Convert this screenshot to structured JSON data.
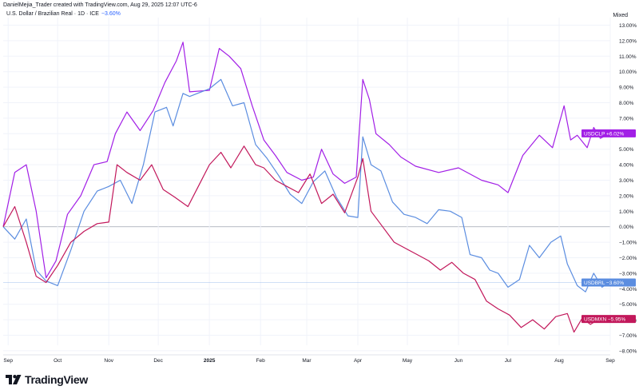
{
  "header": {
    "attribution": "DanielMejia_Trader created with TradingView.com, Aug 29, 2025 12:07 UTC-6",
    "symbol_title": "U.S. Dollar / Brazilian Real · 1D · ICE",
    "symbol_change": "−3.60%",
    "scale_mode": "Mixed"
  },
  "brand": {
    "name": "TradingView",
    "logo_icon": "tradingview-logo-icon"
  },
  "colors": {
    "usdclp": "#a21fe6",
    "usdbrl": "#5b8de0",
    "usdmxn": "#c2185b",
    "zero_line": "#b2b5be",
    "grid": "#f0f3fa"
  },
  "chart_data": {
    "type": "line",
    "title": "U.S. Dollar / Brazilian Real · 1D · ICE",
    "ylabel": "",
    "xlabel": "",
    "ylim": [
      -8.5,
      13.4
    ],
    "y_ticks": [
      "13.00%",
      "12.00%",
      "11.00%",
      "10.00%",
      "9.00%",
      "8.00%",
      "7.00%",
      "6.00%",
      "5.00%",
      "4.00%",
      "3.00%",
      "2.00%",
      "1.00%",
      "0.00%",
      "−1.00%",
      "−2.00%",
      "−3.00%",
      "−4.00%",
      "−5.00%",
      "−6.00%",
      "−7.00%",
      "−8.00%"
    ],
    "y_tick_values": [
      13,
      12,
      11,
      10,
      9,
      8,
      7,
      6,
      5,
      4,
      3,
      2,
      1,
      0,
      -1,
      -2,
      -3,
      -4,
      -5,
      -6,
      -7,
      -8
    ],
    "x_ticks": [
      "Sep",
      "Oct",
      "Nov",
      "Dec",
      "2025",
      "Feb",
      "Mar",
      "Apr",
      "May",
      "Jun",
      "Jul",
      "Aug",
      "Sep"
    ],
    "x_tick_dates": [
      "2024-09-01",
      "2024-10-01",
      "2024-11-01",
      "2024-12-01",
      "2025-01-01",
      "2025-02-01",
      "2025-03-01",
      "2025-04-01",
      "2025-05-01",
      "2025-06-01",
      "2025-07-01",
      "2025-08-01",
      "2025-09-01"
    ],
    "date_range": [
      "2024-08-29",
      "2025-09-01"
    ],
    "series": [
      {
        "name": "USDCLP",
        "color": "#a21fe6",
        "last_label": "+6.02%",
        "points": [
          [
            "2024-08-29",
            0
          ],
          [
            "2024-09-05",
            3.5
          ],
          [
            "2024-09-12",
            4
          ],
          [
            "2024-09-18",
            1
          ],
          [
            "2024-09-24",
            -3.3
          ],
          [
            "2024-09-30",
            -2.2
          ],
          [
            "2024-10-07",
            0.8
          ],
          [
            "2024-10-15",
            2
          ],
          [
            "2024-10-23",
            4
          ],
          [
            "2024-10-31",
            4.2
          ],
          [
            "2024-11-05",
            6
          ],
          [
            "2024-11-12",
            7.4
          ],
          [
            "2024-11-20",
            6.2
          ],
          [
            "2024-11-28",
            7.5
          ],
          [
            "2024-12-05",
            9.3
          ],
          [
            "2024-12-12",
            10.7
          ],
          [
            "2024-12-16",
            11.9
          ],
          [
            "2024-12-20",
            8.7
          ],
          [
            "2025-01-01",
            8.8
          ],
          [
            "2025-01-07",
            11.5
          ],
          [
            "2025-01-13",
            11
          ],
          [
            "2025-01-20",
            10.2
          ],
          [
            "2025-01-27",
            7.8
          ],
          [
            "2025-02-03",
            5.6
          ],
          [
            "2025-02-10",
            4.6
          ],
          [
            "2025-02-17",
            3.5
          ],
          [
            "2025-02-26",
            3
          ],
          [
            "2025-03-05",
            3.2
          ],
          [
            "2025-03-10",
            5
          ],
          [
            "2025-03-17",
            3.4
          ],
          [
            "2025-03-24",
            2.8
          ],
          [
            "2025-03-31",
            3.2
          ],
          [
            "2025-04-04",
            9.5
          ],
          [
            "2025-04-08",
            8.2
          ],
          [
            "2025-04-12",
            6
          ],
          [
            "2025-04-20",
            5.3
          ],
          [
            "2025-04-27",
            4.5
          ],
          [
            "2025-05-06",
            3.9
          ],
          [
            "2025-05-20",
            3.5
          ],
          [
            "2025-06-01",
            3.8
          ],
          [
            "2025-06-15",
            3
          ],
          [
            "2025-06-25",
            2.7
          ],
          [
            "2025-07-01",
            2.2
          ],
          [
            "2025-07-10",
            4.6
          ],
          [
            "2025-07-20",
            5.9
          ],
          [
            "2025-07-28",
            5.1
          ],
          [
            "2025-08-04",
            7.8
          ],
          [
            "2025-08-08",
            5.6
          ],
          [
            "2025-08-12",
            5.9
          ],
          [
            "2025-08-18",
            5.1
          ],
          [
            "2025-08-22",
            6.4
          ],
          [
            "2025-08-26",
            5.7
          ],
          [
            "2025-09-01",
            6.02
          ]
        ]
      },
      {
        "name": "USDBRL",
        "color": "#5b8de0",
        "last_label": "−3.60%",
        "points": [
          [
            "2024-08-29",
            0
          ],
          [
            "2024-09-05",
            -0.8
          ],
          [
            "2024-09-12",
            0.5
          ],
          [
            "2024-09-18",
            -2.8
          ],
          [
            "2024-09-24",
            -3.5
          ],
          [
            "2024-10-01",
            -3.8
          ],
          [
            "2024-10-09",
            -1.5
          ],
          [
            "2024-10-17",
            1
          ],
          [
            "2024-10-25",
            2.3
          ],
          [
            "2024-11-01",
            2.6
          ],
          [
            "2024-11-08",
            3
          ],
          [
            "2024-11-15",
            1.5
          ],
          [
            "2024-11-22",
            4
          ],
          [
            "2024-11-29",
            7.4
          ],
          [
            "2024-12-06",
            7.7
          ],
          [
            "2024-12-10",
            6.5
          ],
          [
            "2024-12-16",
            8.6
          ],
          [
            "2024-12-20",
            8.4
          ],
          [
            "2025-01-01",
            8.9
          ],
          [
            "2025-01-08",
            9.5
          ],
          [
            "2025-01-15",
            7.8
          ],
          [
            "2025-01-22",
            8
          ],
          [
            "2025-01-29",
            5.3
          ],
          [
            "2025-02-05",
            4.4
          ],
          [
            "2025-02-12",
            3.3
          ],
          [
            "2025-02-19",
            2.1
          ],
          [
            "2025-02-26",
            1.5
          ],
          [
            "2025-03-05",
            2.9
          ],
          [
            "2025-03-12",
            3.6
          ],
          [
            "2025-03-19",
            1.9
          ],
          [
            "2025-03-26",
            0.7
          ],
          [
            "2025-04-01",
            0.6
          ],
          [
            "2025-04-04",
            5.8
          ],
          [
            "2025-04-09",
            4
          ],
          [
            "2025-04-15",
            3.6
          ],
          [
            "2025-04-22",
            1.6
          ],
          [
            "2025-04-29",
            0.8
          ],
          [
            "2025-05-06",
            0.6
          ],
          [
            "2025-05-13",
            0.2
          ],
          [
            "2025-05-20",
            1.1
          ],
          [
            "2025-05-27",
            1
          ],
          [
            "2025-06-03",
            0.6
          ],
          [
            "2025-06-08",
            -1.8
          ],
          [
            "2025-06-15",
            -2
          ],
          [
            "2025-06-20",
            -2.8
          ],
          [
            "2025-06-25",
            -3
          ],
          [
            "2025-07-01",
            -3.9
          ],
          [
            "2025-07-08",
            -3.4
          ],
          [
            "2025-07-14",
            -1.2
          ],
          [
            "2025-07-20",
            -2
          ],
          [
            "2025-07-27",
            -1
          ],
          [
            "2025-08-02",
            -0.6
          ],
          [
            "2025-08-06",
            -2.4
          ],
          [
            "2025-08-12",
            -3.8
          ],
          [
            "2025-08-17",
            -4.2
          ],
          [
            "2025-08-22",
            -3
          ],
          [
            "2025-08-27",
            -3.9
          ],
          [
            "2025-09-01",
            -3.6
          ]
        ]
      },
      {
        "name": "USDMXN",
        "color": "#c2185b",
        "last_label": "−5.95%",
        "points": [
          [
            "2024-08-29",
            0
          ],
          [
            "2024-09-05",
            1.3
          ],
          [
            "2024-09-12",
            -1
          ],
          [
            "2024-09-18",
            -3.2
          ],
          [
            "2024-09-24",
            -3.6
          ],
          [
            "2024-10-01",
            -2.5
          ],
          [
            "2024-10-09",
            -1
          ],
          [
            "2024-10-17",
            -0.3
          ],
          [
            "2024-10-25",
            0.2
          ],
          [
            "2024-11-01",
            0.3
          ],
          [
            "2024-11-06",
            4
          ],
          [
            "2024-11-12",
            3.5
          ],
          [
            "2024-11-20",
            3
          ],
          [
            "2024-11-27",
            4
          ],
          [
            "2024-12-04",
            2.4
          ],
          [
            "2024-12-11",
            1.9
          ],
          [
            "2024-12-19",
            1.3
          ],
          [
            "2025-01-01",
            4
          ],
          [
            "2025-01-08",
            4.8
          ],
          [
            "2025-01-14",
            3.8
          ],
          [
            "2025-01-22",
            5.2
          ],
          [
            "2025-01-29",
            4
          ],
          [
            "2025-02-03",
            3.8
          ],
          [
            "2025-02-10",
            3
          ],
          [
            "2025-02-17",
            2.6
          ],
          [
            "2025-02-24",
            2.2
          ],
          [
            "2025-03-03",
            3.4
          ],
          [
            "2025-03-10",
            1.5
          ],
          [
            "2025-03-17",
            2.1
          ],
          [
            "2025-03-24",
            0.9
          ],
          [
            "2025-04-01",
            3.2
          ],
          [
            "2025-04-04",
            4.4
          ],
          [
            "2025-04-09",
            1
          ],
          [
            "2025-04-16",
            0
          ],
          [
            "2025-04-23",
            -1
          ],
          [
            "2025-04-30",
            -1.4
          ],
          [
            "2025-05-07",
            -1.8
          ],
          [
            "2025-05-14",
            -2.2
          ],
          [
            "2025-05-21",
            -2.8
          ],
          [
            "2025-05-28",
            -2.3
          ],
          [
            "2025-06-04",
            -3
          ],
          [
            "2025-06-11",
            -3.4
          ],
          [
            "2025-06-18",
            -4.8
          ],
          [
            "2025-06-25",
            -5.3
          ],
          [
            "2025-07-02",
            -5.7
          ],
          [
            "2025-07-09",
            -6.5
          ],
          [
            "2025-07-16",
            -6
          ],
          [
            "2025-07-23",
            -6.6
          ],
          [
            "2025-07-30",
            -5.8
          ],
          [
            "2025-08-06",
            -5.6
          ],
          [
            "2025-08-10",
            -6.8
          ],
          [
            "2025-08-15",
            -5.9
          ],
          [
            "2025-08-20",
            -6.3
          ],
          [
            "2025-08-26",
            -5.9
          ],
          [
            "2025-09-01",
            -5.95
          ]
        ]
      }
    ],
    "grid": true,
    "legend": "right-axis-labels"
  }
}
